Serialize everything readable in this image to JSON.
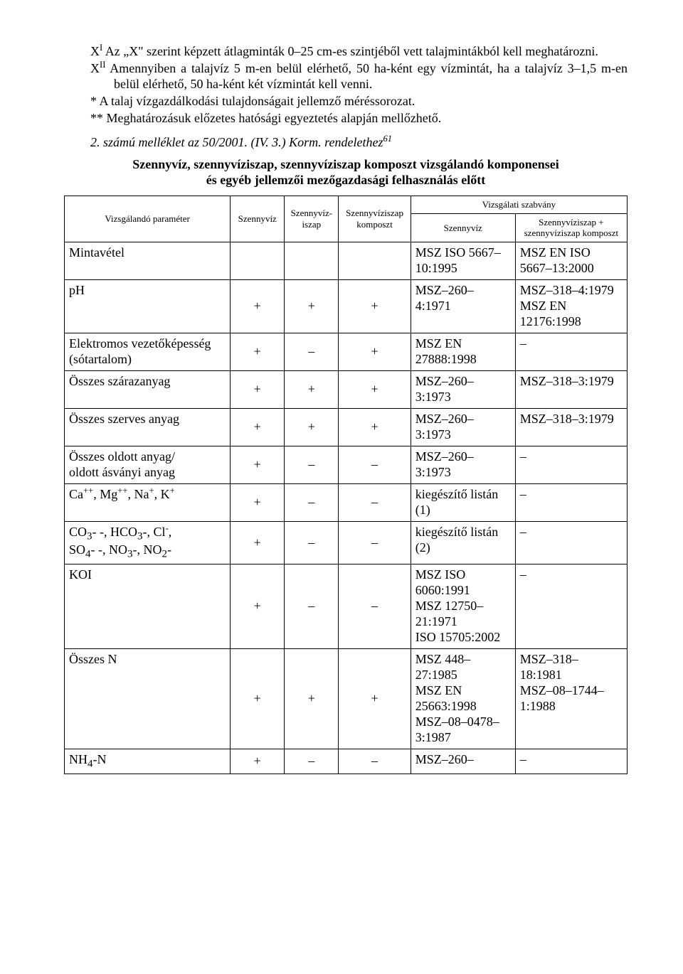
{
  "intro": {
    "line1_pre": "X",
    "line1_sup": "I",
    "line1_post": " Az „X\" szerint képzett átlagminták 0–25 cm-es szintjéből vett talajmintákból kell meghatározni.",
    "line2_pre": "X",
    "line2_sup": "II",
    "line2_post": " Amennyiben a talajvíz 5 m-en belül elérhető, 50 ha-ként egy vízmintát, ha a talajvíz 3–1,5 m-en belül elérhető, 50 ha-ként két vízmintát kell venni.",
    "star1": "* A talaj vízgazdálkodási tulajdonságait jellemző méréssorozat.",
    "star2": "** Meghatározásuk előzetes hatósági egyeztetés alapján mellőzhető."
  },
  "ref": {
    "text": "2. számú melléklet az 50/2001. (IV. 3.) Korm. rendelethez",
    "sup": "61"
  },
  "heading": {
    "l1": "Szennyvíz, szennyvíziszap, szennyvíziszap komposzt vizsgálandó komponensei",
    "l2": "és egyéb jellemzői mezőgazdasági felhasználás előtt"
  },
  "thead": {
    "param": "Vizsgálandó paraméter",
    "c2": "Szennyvíz",
    "c3": "Szennyvíz-iszap",
    "c4": "Szennyvíziszap komposzt",
    "std_group": "Vizsgálati szabvány",
    "c5": "Szennyvíz",
    "c6": "Szennyvíziszap + szennyvíziszap komposzt"
  },
  "rows": {
    "r0": {
      "p": "Mintavétel",
      "a": "",
      "b": "",
      "c": "",
      "d": "MSZ ISO 5667–10:1995",
      "e": "MSZ EN ISO 5667–13:2000"
    },
    "r1": {
      "p": "pH",
      "a": "+",
      "b": "+",
      "c": "+",
      "d": "MSZ–260–4:1971",
      "e": "MSZ–318–4:1979 MSZ EN 12176:1998"
    },
    "r2": {
      "p": "Elektromos vezetőképesség (sótartalom)",
      "a": "+",
      "b": "–",
      "c": "+",
      "d": "MSZ EN 27888:1998",
      "e": "–"
    },
    "r3": {
      "p": "Összes szárazanyag",
      "a": "+",
      "b": "+",
      "c": "+",
      "d": "MSZ–260–3:1973",
      "e": "MSZ–318–3:1979"
    },
    "r4": {
      "p": "Összes szerves anyag",
      "a": "+",
      "b": "+",
      "c": "+",
      "d": "MSZ–260–3:1973",
      "e": "MSZ–318–3:1979"
    },
    "r5": {
      "p": "Összes oldott anyag/ oldott ásványi anyag",
      "a": "+",
      "b": "–",
      "c": "–",
      "d": "MSZ–260–3:1973",
      "e": "–"
    },
    "r6": {
      "a": "+",
      "b": "–",
      "c": "–",
      "d": "kiegészítő listán (1)",
      "e": "–"
    },
    "r7": {
      "a": "+",
      "b": "–",
      "c": "–",
      "d": "kiegészítő listán (2)",
      "e": "–"
    },
    "r8": {
      "p": "KOI",
      "a": "+",
      "b": "–",
      "c": "–",
      "d": "MSZ ISO 6060:1991 MSZ 12750–21:1971 ISO 15705:2002",
      "e": "–"
    },
    "r9": {
      "p": "Összes N",
      "a": "+",
      "b": "+",
      "c": "+",
      "d": "MSZ 448–27:1985 MSZ EN 25663:1998 MSZ–08–0478–3:1987",
      "e": "MSZ–318–18:1981 MSZ–08–1744–1:1988"
    },
    "r10": {
      "a": "+",
      "b": "–",
      "c": "–",
      "d": "MSZ–260–",
      "e": "–"
    }
  }
}
